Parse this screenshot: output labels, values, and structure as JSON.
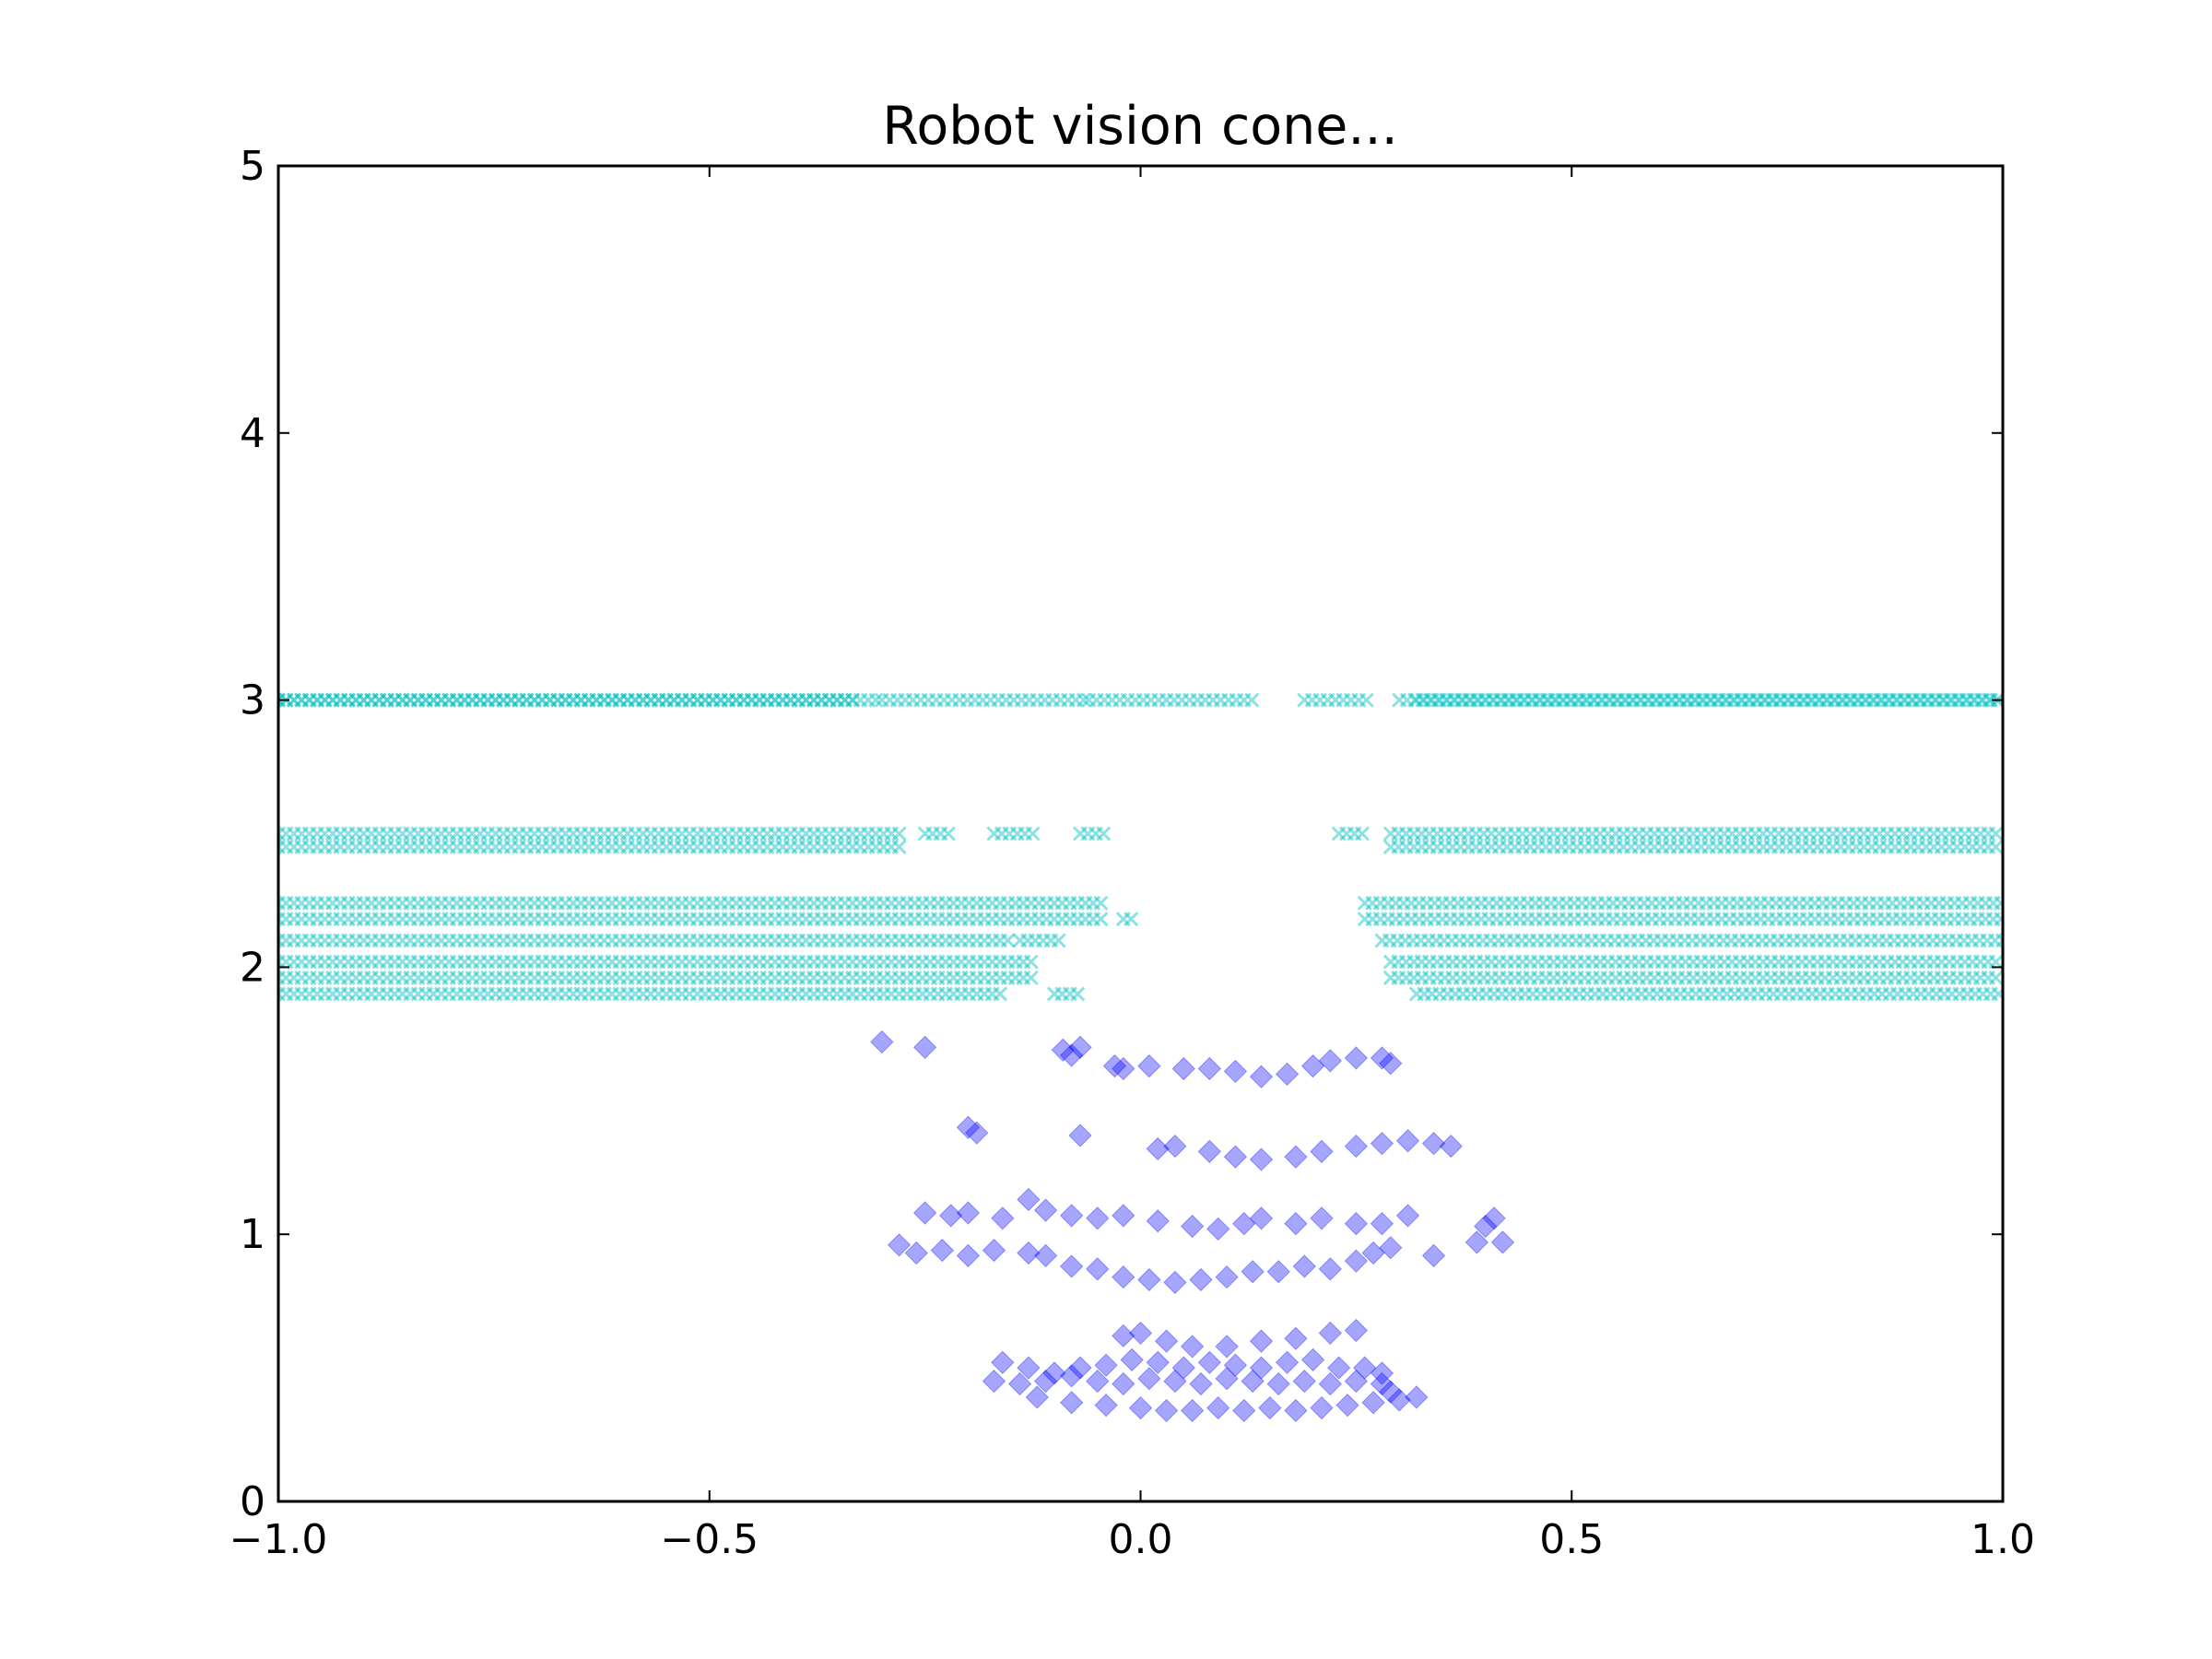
{
  "chart_data": {
    "type": "scatter",
    "title": "Robot vision cone...",
    "xlabel": "",
    "ylabel": "",
    "xlim": [
      -1.0,
      1.0
    ],
    "ylim": [
      0,
      5
    ],
    "grid": false,
    "x_tick_labels": [
      "−1.0",
      "−0.5",
      "0.0",
      "0.5",
      "1.0"
    ],
    "x_tick_values": [
      -1.0,
      -0.5,
      0.0,
      0.5,
      1.0
    ],
    "y_tick_labels": [
      "0",
      "1",
      "2",
      "3",
      "4",
      "5"
    ],
    "y_tick_values": [
      0,
      1,
      2,
      3,
      4,
      5
    ],
    "series": [
      {
        "marker": "x",
        "color": "#00bfbf",
        "opacity": 0.45,
        "bands": [
          {
            "y": 3.0,
            "ranges": [
              [
                -1.0,
                -0.3
              ],
              [
                -0.3,
                -0.06
              ],
              [
                -0.06,
                0.13
              ],
              [
                0.19,
                0.27
              ],
              [
                0.3,
                1.0
              ]
            ]
          },
          {
            "y": 3.0,
            "ranges": [
              [
                -1.0,
                -0.33
              ],
              [
                0.32,
                1.0
              ]
            ]
          },
          {
            "y": 2.5,
            "ranges": [
              [
                -1.0,
                -0.28
              ],
              [
                -0.25,
                -0.22
              ],
              [
                -0.17,
                -0.12
              ],
              [
                -0.07,
                -0.04
              ],
              [
                0.23,
                0.26
              ],
              [
                0.29,
                1.0
              ]
            ]
          },
          {
            "y": 2.45,
            "ranges": [
              [
                -1.0,
                -0.28
              ],
              [
                0.29,
                1.0
              ]
            ]
          },
          {
            "y": 2.24,
            "ranges": [
              [
                -1.0,
                -0.04
              ],
              [
                0.26,
                1.0
              ]
            ]
          },
          {
            "y": 2.18,
            "ranges": [
              [
                -1.0,
                -0.04
              ],
              [
                -0.02,
                -0.01
              ],
              [
                0.26,
                1.0
              ]
            ]
          },
          {
            "y": 2.1,
            "ranges": [
              [
                -1.0,
                -0.15
              ],
              [
                -0.14,
                -0.09
              ],
              [
                0.28,
                1.0
              ]
            ]
          },
          {
            "y": 2.02,
            "ranges": [
              [
                -1.0,
                -0.12
              ],
              [
                0.29,
                1.0
              ]
            ]
          },
          {
            "y": 1.96,
            "ranges": [
              [
                -1.0,
                -0.12
              ],
              [
                0.29,
                1.0
              ]
            ]
          },
          {
            "y": 1.9,
            "ranges": [
              [
                -1.0,
                -0.16
              ],
              [
                -0.1,
                -0.07
              ],
              [
                0.32,
                1.0
              ]
            ]
          }
        ]
      },
      {
        "marker": "D",
        "color": "#0000ff",
        "opacity": 0.35,
        "points": [
          [
            -0.3,
            1.72
          ],
          [
            -0.25,
            1.7
          ],
          [
            -0.09,
            1.69
          ],
          [
            -0.07,
            1.7
          ],
          [
            -0.08,
            1.67
          ],
          [
            -0.03,
            1.63
          ],
          [
            -0.02,
            1.62
          ],
          [
            0.01,
            1.63
          ],
          [
            0.05,
            1.62
          ],
          [
            0.08,
            1.62
          ],
          [
            0.11,
            1.61
          ],
          [
            0.14,
            1.59
          ],
          [
            0.17,
            1.6
          ],
          [
            0.2,
            1.63
          ],
          [
            0.22,
            1.65
          ],
          [
            0.25,
            1.66
          ],
          [
            0.28,
            1.66
          ],
          [
            0.29,
            1.64
          ],
          [
            -0.2,
            1.4
          ],
          [
            -0.19,
            1.38
          ],
          [
            -0.07,
            1.37
          ],
          [
            0.02,
            1.32
          ],
          [
            0.04,
            1.33
          ],
          [
            0.08,
            1.31
          ],
          [
            0.11,
            1.29
          ],
          [
            0.14,
            1.28
          ],
          [
            0.18,
            1.29
          ],
          [
            0.21,
            1.31
          ],
          [
            0.25,
            1.33
          ],
          [
            0.28,
            1.34
          ],
          [
            0.31,
            1.35
          ],
          [
            0.34,
            1.34
          ],
          [
            0.36,
            1.33
          ],
          [
            -0.25,
            1.08
          ],
          [
            -0.22,
            1.07
          ],
          [
            -0.2,
            1.08
          ],
          [
            -0.16,
            1.06
          ],
          [
            -0.13,
            1.13
          ],
          [
            -0.11,
            1.09
          ],
          [
            -0.08,
            1.07
          ],
          [
            -0.05,
            1.06
          ],
          [
            -0.02,
            1.07
          ],
          [
            0.02,
            1.05
          ],
          [
            0.06,
            1.03
          ],
          [
            0.09,
            1.02
          ],
          [
            0.12,
            1.04
          ],
          [
            0.14,
            1.06
          ],
          [
            0.18,
            1.04
          ],
          [
            0.21,
            1.06
          ],
          [
            0.25,
            1.04
          ],
          [
            0.28,
            1.04
          ],
          [
            0.31,
            1.07
          ],
          [
            0.41,
            1.06
          ],
          [
            0.4,
            1.03
          ],
          [
            -0.28,
            0.96
          ],
          [
            -0.26,
            0.93
          ],
          [
            -0.23,
            0.94
          ],
          [
            -0.2,
            0.92
          ],
          [
            -0.17,
            0.94
          ],
          [
            -0.13,
            0.93
          ],
          [
            -0.11,
            0.92
          ],
          [
            -0.08,
            0.88
          ],
          [
            -0.05,
            0.87
          ],
          [
            -0.02,
            0.84
          ],
          [
            0.01,
            0.83
          ],
          [
            0.04,
            0.82
          ],
          [
            0.07,
            0.83
          ],
          [
            0.1,
            0.84
          ],
          [
            0.13,
            0.86
          ],
          [
            0.16,
            0.86
          ],
          [
            0.19,
            0.88
          ],
          [
            0.22,
            0.87
          ],
          [
            0.25,
            0.9
          ],
          [
            0.27,
            0.93
          ],
          [
            0.29,
            0.95
          ],
          [
            0.34,
            0.92
          ],
          [
            0.39,
            0.97
          ],
          [
            0.42,
            0.97
          ],
          [
            -0.02,
            0.62
          ],
          [
            0.0,
            0.63
          ],
          [
            0.03,
            0.6
          ],
          [
            0.06,
            0.58
          ],
          [
            0.1,
            0.58
          ],
          [
            0.14,
            0.6
          ],
          [
            0.18,
            0.61
          ],
          [
            0.22,
            0.63
          ],
          [
            0.25,
            0.64
          ],
          [
            -0.16,
            0.52
          ],
          [
            -0.13,
            0.5
          ],
          [
            -0.1,
            0.48
          ],
          [
            -0.07,
            0.5
          ],
          [
            -0.04,
            0.51
          ],
          [
            -0.01,
            0.53
          ],
          [
            0.02,
            0.52
          ],
          [
            0.05,
            0.5
          ],
          [
            0.08,
            0.52
          ],
          [
            0.11,
            0.51
          ],
          [
            0.14,
            0.5
          ],
          [
            0.17,
            0.52
          ],
          [
            0.2,
            0.53
          ],
          [
            0.23,
            0.5
          ],
          [
            0.26,
            0.5
          ],
          [
            0.28,
            0.48
          ],
          [
            -0.17,
            0.45
          ],
          [
            -0.14,
            0.44
          ],
          [
            -0.11,
            0.45
          ],
          [
            -0.08,
            0.47
          ],
          [
            -0.05,
            0.45
          ],
          [
            -0.02,
            0.44
          ],
          [
            0.01,
            0.46
          ],
          [
            0.04,
            0.45
          ],
          [
            0.07,
            0.44
          ],
          [
            0.1,
            0.46
          ],
          [
            0.13,
            0.45
          ],
          [
            0.16,
            0.44
          ],
          [
            0.19,
            0.45
          ],
          [
            0.22,
            0.44
          ],
          [
            0.25,
            0.45
          ],
          [
            0.28,
            0.44
          ],
          [
            0.29,
            0.41
          ],
          [
            -0.12,
            0.39
          ],
          [
            -0.08,
            0.37
          ],
          [
            -0.04,
            0.36
          ],
          [
            0.0,
            0.35
          ],
          [
            0.03,
            0.34
          ],
          [
            0.06,
            0.34
          ],
          [
            0.09,
            0.35
          ],
          [
            0.12,
            0.34
          ],
          [
            0.15,
            0.35
          ],
          [
            0.18,
            0.34
          ],
          [
            0.21,
            0.35
          ],
          [
            0.24,
            0.36
          ],
          [
            0.27,
            0.37
          ],
          [
            0.3,
            0.38
          ],
          [
            0.32,
            0.39
          ]
        ]
      }
    ]
  }
}
